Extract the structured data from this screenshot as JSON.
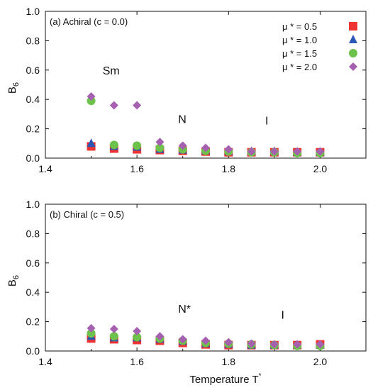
{
  "figure": {
    "xlabel": "Temperature  T",
    "xlabel_sup": "*"
  },
  "legend": [
    {
      "label": "μ * = 0.5",
      "color": "#ee3333",
      "marker": "square"
    },
    {
      "label": "μ * = 1.0",
      "color": "#2a56b5",
      "marker": "triangle"
    },
    {
      "label": "μ * = 1.5",
      "color": "#6cc24a",
      "marker": "circle"
    },
    {
      "label": "μ * = 2.0",
      "color": "#a660b0",
      "marker": "diamond"
    }
  ],
  "chart_data": [
    {
      "type": "scatter",
      "title": "(a) Achiral (c = 0.0)",
      "ylabel": "B",
      "ylabel_sub": "6",
      "xlim": [
        1.4,
        2.1
      ],
      "ylim": [
        0,
        1.0
      ],
      "xticks": [
        "1.4",
        "1.6",
        "1.8",
        "2.0"
      ],
      "yticks": [
        "0.0",
        "0.2",
        "0.4",
        "0.6",
        "0.8",
        "1.0"
      ],
      "annotations": [
        {
          "text": "Sm",
          "x": 1.525,
          "y": 0.57
        },
        {
          "text": "N",
          "x": 1.69,
          "y": 0.24
        },
        {
          "text": "I",
          "x": 1.88,
          "y": 0.23
        }
      ],
      "series": [
        {
          "name": "μ * = 0.5",
          "x": [
            1.5,
            1.55,
            1.6,
            1.65,
            1.7,
            1.75,
            1.8,
            1.85,
            1.9,
            1.95,
            2.0
          ],
          "values": [
            0.08,
            0.065,
            0.06,
            0.055,
            0.05,
            0.045,
            0.04,
            0.04,
            0.04,
            0.04,
            0.04
          ]
        },
        {
          "name": "μ * = 1.0",
          "x": [
            1.5,
            1.55,
            1.6,
            1.65,
            1.7,
            1.75,
            1.8,
            1.85,
            1.9,
            1.95,
            2.0
          ],
          "values": [
            0.1,
            0.08,
            0.075,
            0.06,
            0.055,
            0.05,
            0.045,
            0.045,
            0.045,
            0.04,
            0.04
          ]
        },
        {
          "name": "μ * = 1.5",
          "x": [
            1.5,
            1.55,
            1.6,
            1.65,
            1.7,
            1.75,
            1.8,
            1.85,
            1.9,
            1.95,
            2.0
          ],
          "values": [
            0.39,
            0.09,
            0.085,
            0.07,
            0.06,
            0.05,
            0.045,
            0.04,
            0.04,
            0.035,
            0.035
          ]
        },
        {
          "name": "μ * = 2.0",
          "x": [
            1.5,
            1.55,
            1.6,
            1.65,
            1.7,
            1.75,
            1.8,
            1.85,
            1.9,
            1.95,
            2.0
          ],
          "values": [
            0.42,
            0.36,
            0.36,
            0.11,
            0.085,
            0.07,
            0.06,
            0.045,
            0.045,
            0.045,
            0.045
          ]
        }
      ]
    },
    {
      "type": "scatter",
      "title": "(b) Chiral (c = 0.5)",
      "ylabel": "B",
      "ylabel_sub": "6",
      "xlim": [
        1.4,
        2.1
      ],
      "ylim": [
        0,
        1.0
      ],
      "xticks": [
        "1.4",
        "1.6",
        "1.8",
        "2.0"
      ],
      "yticks": [
        "0.0",
        "0.2",
        "0.4",
        "0.6",
        "0.8",
        "1.0"
      ],
      "annotations": [
        {
          "text": "N*",
          "x": 1.69,
          "y": 0.26
        },
        {
          "text": "I",
          "x": 1.915,
          "y": 0.22
        }
      ],
      "series": [
        {
          "name": "μ * = 0.5",
          "x": [
            1.5,
            1.55,
            1.6,
            1.65,
            1.7,
            1.75,
            1.8,
            1.85,
            1.9,
            1.95,
            2.0
          ],
          "values": [
            0.085,
            0.08,
            0.075,
            0.07,
            0.055,
            0.045,
            0.04,
            0.04,
            0.04,
            0.04,
            0.045
          ]
        },
        {
          "name": "μ * = 1.0",
          "x": [
            1.5,
            1.55,
            1.6,
            1.65,
            1.7,
            1.75,
            1.8,
            1.85,
            1.9,
            1.95,
            2.0
          ],
          "values": [
            0.1,
            0.09,
            0.09,
            0.08,
            0.065,
            0.05,
            0.045,
            0.04,
            0.04,
            0.04,
            0.04
          ]
        },
        {
          "name": "μ * = 1.5",
          "x": [
            1.5,
            1.55,
            1.6,
            1.65,
            1.7,
            1.75,
            1.8,
            1.85,
            1.9,
            1.95,
            2.0
          ],
          "values": [
            0.12,
            0.1,
            0.095,
            0.085,
            0.07,
            0.055,
            0.05,
            0.045,
            0.04,
            0.035,
            0.035
          ]
        },
        {
          "name": "μ * = 2.0",
          "x": [
            1.5,
            1.55,
            1.6,
            1.65,
            1.7,
            1.75,
            1.8,
            1.85,
            1.9,
            1.95,
            2.0
          ],
          "values": [
            0.155,
            0.15,
            0.135,
            0.1,
            0.08,
            0.07,
            0.06,
            0.05,
            0.045,
            0.045,
            0.045
          ]
        }
      ]
    }
  ]
}
